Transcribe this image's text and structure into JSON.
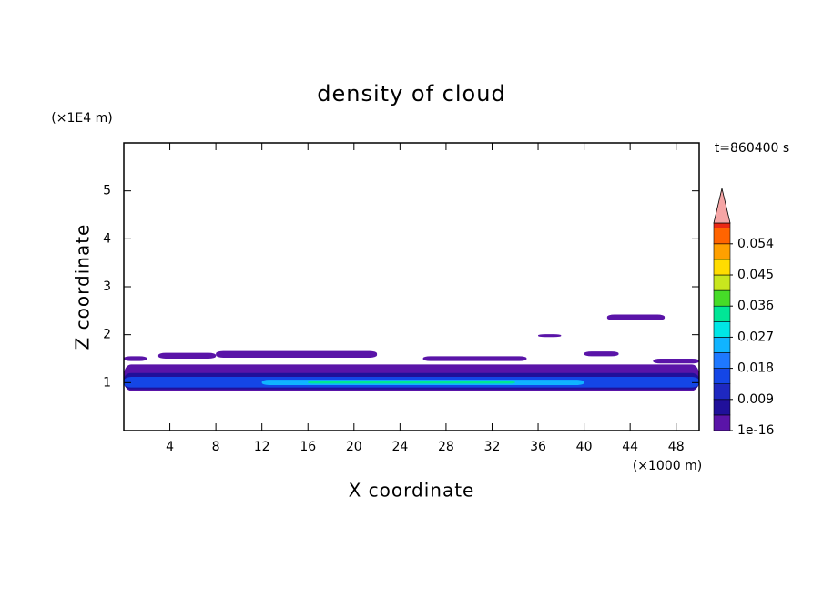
{
  "chart_data": {
    "type": "contour",
    "title": "density of cloud",
    "x_label": "X coordinate",
    "y_label": "Z coordinate",
    "x_unit": "(×1000 m)",
    "y_unit": "(×1E4 m)",
    "time": "t=860400 s",
    "xlim": [
      0,
      50
    ],
    "ylim": [
      0,
      6
    ],
    "xticks": [
      4,
      8,
      12,
      16,
      20,
      24,
      28,
      32,
      36,
      40,
      44,
      48
    ],
    "yticks": [
      1,
      2,
      3,
      4,
      5
    ],
    "colorbar": {
      "levels": [
        1e-16,
        0.0045,
        0.009,
        0.0135,
        0.018,
        0.0225,
        0.027,
        0.0315,
        0.036,
        0.0405,
        0.045,
        0.0495,
        0.054,
        0.0585,
        0.06
      ],
      "colors": [
        "#5a14a8",
        "#20109a",
        "#1e28c0",
        "#1446e6",
        "#1e78ff",
        "#10b4ff",
        "#00e6e6",
        "#00e696",
        "#46dc28",
        "#c8e61e",
        "#ffdc00",
        "#ffa000",
        "#ff6400",
        "#eb2814"
      ],
      "ticks": [
        1e-16,
        0.009,
        0.018,
        0.027,
        0.036,
        0.045,
        0.054
      ],
      "over_color": "#f5a5a5"
    },
    "regions": [
      {
        "x": [
          0,
          50
        ],
        "z": [
          0.83,
          1.38
        ],
        "value": 0.003
      },
      {
        "x": [
          0,
          50
        ],
        "z": [
          0.86,
          1.2
        ],
        "value": 0.008
      },
      {
        "x": [
          0,
          50
        ],
        "z": [
          0.9,
          1.12
        ],
        "value": 0.016
      },
      {
        "x": [
          12,
          40
        ],
        "z": [
          0.95,
          1.06
        ],
        "value": 0.024
      },
      {
        "x": [
          16,
          34
        ],
        "z": [
          0.98,
          1.03
        ],
        "value": 0.033
      },
      {
        "x": [
          0,
          2
        ],
        "z": [
          1.45,
          1.55
        ],
        "value": 0.002
      },
      {
        "x": [
          3,
          8
        ],
        "z": [
          1.5,
          1.62
        ],
        "value": 0.002
      },
      {
        "x": [
          8,
          22
        ],
        "z": [
          1.52,
          1.66
        ],
        "value": 0.002
      },
      {
        "x": [
          26,
          35
        ],
        "z": [
          1.45,
          1.55
        ],
        "value": 0.002
      },
      {
        "x": [
          40,
          43
        ],
        "z": [
          1.55,
          1.65
        ],
        "value": 0.002
      },
      {
        "x": [
          36,
          38
        ],
        "z": [
          1.95,
          2.01
        ],
        "value": 0.002
      },
      {
        "x": [
          42,
          47
        ],
        "z": [
          2.3,
          2.42
        ],
        "value": 0.002
      },
      {
        "x": [
          46,
          50
        ],
        "z": [
          1.4,
          1.5
        ],
        "value": 0.002
      }
    ]
  }
}
